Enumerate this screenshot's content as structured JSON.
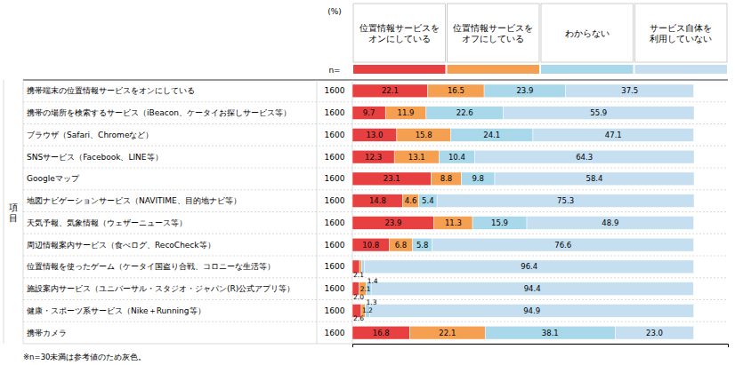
{
  "chart_data": {
    "type": "bar",
    "orientation": "horizontal",
    "stacked": true,
    "data_labels": true,
    "tick_labels": false,
    "legend": "top",
    "grid": false,
    "ylabel": "項\n目",
    "annotations": [
      "※n=30未満は参考値のため灰色。",
      "(%)"
    ],
    "categories": [
      "携帯端末の位置情報サービスをオンにしている",
      "携帯の場所を検索するサービス（iBeacon、ケータイお探しサービス等）",
      "ブラウザ（Safari、Chromeなど）",
      "SNSサービス（Facebook、LINE等）",
      "Googleマップ",
      "地図ナビゲーションサービス（NAVITIME、目的地ナビ等）",
      "天気予報、気象情報（ウェザーニュース等）",
      "周辺情報案内サービス（食べログ、RecoCheck等）",
      "位置情報を使ったゲーム（ケータイ国盗り合戦、コロニーな生活等）",
      "施設案内サービス（ユニバーサル・スタジオ・ジャパン(R)公式アプリ等）",
      "健康・スポーツ系サービス（Nike＋Running等）",
      "携帯カメラ"
    ],
    "sample_sizes": {
      "label": "n=",
      "values": [
        1600,
        1600,
        1600,
        1600,
        1600,
        1600,
        1600,
        1600,
        1600,
        1600,
        1600,
        1600
      ]
    },
    "series": [
      {
        "name": "位置情報サービスを\nオンにしている",
        "color": "#e84040",
        "values": [
          22.1,
          9.7,
          13.0,
          12.3,
          23.1,
          14.8,
          23.9,
          10.8,
          2.1,
          2.0,
          2.6,
          16.8
        ],
        "value_labels": [
          "22.1",
          "9.7",
          "13.0",
          "12.3",
          "23.1",
          "14.8",
          "23.9",
          "10.8",
          "2.1",
          "2.0",
          "2.6",
          "16.8"
        ]
      },
      {
        "name": "位置情報サービスを\nオフにしている",
        "color": "#f5a050",
        "values": [
          16.5,
          11.9,
          15.8,
          13.1,
          8.8,
          4.6,
          11.3,
          6.8,
          0.6,
          2.1,
          1.2,
          22.1
        ],
        "value_labels": [
          "16.5",
          "11.9",
          "15.8",
          "13.1",
          "8.8",
          "4.6",
          "11.3",
          "6.8",
          null,
          "2.1",
          "1.2",
          "22.1"
        ]
      },
      {
        "name": "わからない",
        "color": "#a8d8ea",
        "values": [
          23.9,
          22.6,
          24.1,
          10.4,
          9.8,
          5.4,
          15.9,
          5.8,
          0.9,
          1.4,
          1.3,
          38.1
        ],
        "value_labels": [
          "23.9",
          "22.6",
          "24.1",
          "10.4",
          "9.8",
          "5.4",
          "15.9",
          "5.8",
          null,
          "1.4",
          "1.3",
          "38.1"
        ]
      },
      {
        "name": "サービス自体を\n利用していない",
        "color": "#c5dff0",
        "values": [
          37.5,
          55.9,
          47.1,
          64.3,
          58.4,
          75.3,
          48.9,
          76.6,
          96.4,
          94.4,
          94.9,
          23.0
        ],
        "value_labels": [
          "37.5",
          "55.9",
          "47.1",
          "64.3",
          "58.4",
          "75.3",
          "48.9",
          "76.6",
          "96.4",
          "94.4",
          "94.9",
          "23.0"
        ]
      }
    ],
    "xlim": [
      0,
      110
    ]
  }
}
